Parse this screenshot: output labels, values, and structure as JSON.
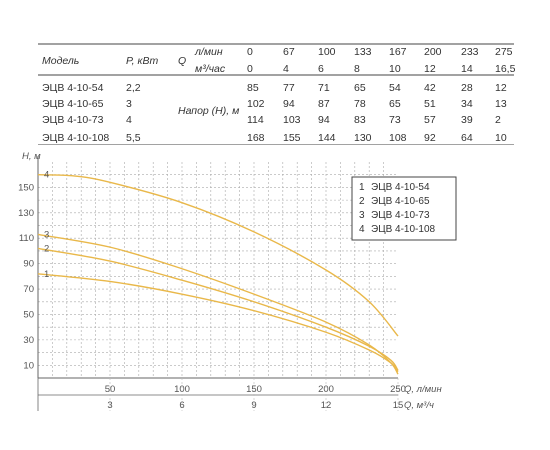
{
  "table": {
    "headers": {
      "model": "Модель",
      "power": "P, кВт",
      "q_symbol": "Q",
      "unit_lpm": "л/мин",
      "unit_m3h": "м³/час",
      "head": "Напор (H), м"
    },
    "q_lpm": [
      "0",
      "67",
      "100",
      "133",
      "167",
      "200",
      "233",
      "275"
    ],
    "q_m3h": [
      "0",
      "4",
      "6",
      "8",
      "10",
      "12",
      "14",
      "16,5"
    ],
    "rows": [
      {
        "model": "ЭЦВ 4-10-54",
        "power": "2,2",
        "heads": [
          "85",
          "77",
          "71",
          "65",
          "54",
          "42",
          "28",
          "12"
        ]
      },
      {
        "model": "ЭЦВ 4-10-65",
        "power": "3",
        "heads": [
          "102",
          "94",
          "87",
          "78",
          "65",
          "51",
          "34",
          "13"
        ]
      },
      {
        "model": "ЭЦВ 4-10-73",
        "power": "4",
        "heads": [
          "114",
          "103",
          "94",
          "83",
          "73",
          "57",
          "39",
          "2"
        ]
      },
      {
        "model": "ЭЦВ 4-10-108",
        "power": "5,5",
        "heads": [
          "168",
          "155",
          "144",
          "130",
          "108",
          "92",
          "64",
          "10"
        ]
      }
    ]
  },
  "chart_data": {
    "type": "line",
    "ylabel": "H, м",
    "xlabel": "Q, л/мин",
    "x2label": "Q, м³/ч",
    "xlim": [
      0,
      250
    ],
    "ylim": [
      0,
      170
    ],
    "x_ticks": [
      "50",
      "100",
      "150",
      "200",
      "250"
    ],
    "x_tick_values": [
      50,
      100,
      150,
      200,
      250
    ],
    "x2_ticks": [
      "3",
      "6",
      "9",
      "12",
      "15"
    ],
    "y_ticks": [
      "10",
      "30",
      "50",
      "70",
      "90",
      "110",
      "130",
      "150"
    ],
    "y_tick_values": [
      10,
      30,
      50,
      70,
      90,
      110,
      130,
      150
    ],
    "grid": true,
    "legend_position": "top-right",
    "colors": {
      "curve": "#e9b84a",
      "legend_number": "#e9a400",
      "grid": "#aaaaaa",
      "axis": "#666666"
    },
    "series": [
      {
        "name": "ЭЦВ 4-10-54",
        "label": "1",
        "x": [
          0,
          50,
          100,
          150,
          200,
          230,
          245,
          250
        ],
        "y": [
          82,
          76,
          66,
          53,
          36,
          22,
          12,
          5
        ]
      },
      {
        "name": "ЭЦВ 4-10-65",
        "label": "2",
        "x": [
          0,
          50,
          100,
          150,
          200,
          230,
          245,
          250
        ],
        "y": [
          102,
          92,
          77,
          60,
          40,
          25,
          14,
          6
        ]
      },
      {
        "name": "ЭЦВ 4-10-73",
        "label": "3",
        "x": [
          0,
          50,
          100,
          150,
          200,
          230,
          245,
          250
        ],
        "y": [
          113,
          103,
          86,
          66,
          44,
          26,
          12,
          3
        ]
      },
      {
        "name": "ЭЦВ 4-10-108",
        "label": "4",
        "x": [
          0,
          25,
          50,
          100,
          150,
          200,
          230,
          250
        ],
        "y": [
          160,
          159,
          154,
          138,
          115,
          85,
          60,
          33
        ]
      }
    ]
  }
}
